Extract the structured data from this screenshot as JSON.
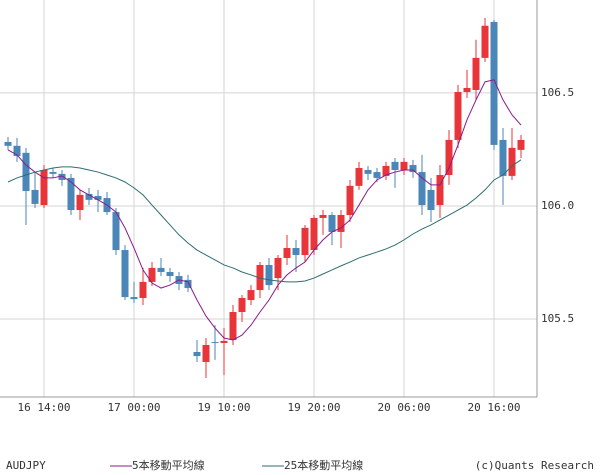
{
  "chart_data": {
    "type": "candlestick",
    "symbol": "AUDJPY",
    "credit": "(c)Quants Research",
    "up_color": "#e8353a",
    "down_color": "#4a86b8",
    "grid": true,
    "ylim": [
      105.155,
      106.911
    ],
    "yticks": [
      105.5,
      {
        "value": 106,
        "label": "106.0"
      },
      106.5
    ],
    "categories": [
      null,
      null,
      null,
      null,
      "16 14:00",
      null,
      null,
      null,
      null,
      null,
      null,
      null,
      null,
      null,
      "17 00:00",
      null,
      null,
      null,
      null,
      null,
      null,
      null,
      null,
      null,
      "19 10:00",
      null,
      null,
      null,
      null,
      null,
      null,
      null,
      null,
      null,
      "19 20:00",
      null,
      null,
      null,
      null,
      null,
      null,
      null,
      null,
      null,
      "20 06:00",
      null,
      null,
      null,
      null,
      null,
      null,
      null,
      null,
      null,
      "20 16:00",
      null,
      null,
      null
    ],
    "open": [
      106.283,
      106.266,
      106.235,
      106.071,
      106.004,
      106.15,
      106.142,
      106.124,
      105.982,
      106.053,
      106.044,
      106.035,
      105.973,
      105.805,
      105.597,
      105.593,
      105.664,
      105.726,
      105.708,
      105.69,
      105.673,
      105.354,
      105.31,
      105.398,
      105.394,
      105.407,
      105.531,
      105.584,
      105.628,
      105.739,
      105.681,
      105.77,
      105.814,
      105.783,
      105.805,
      105.947,
      105.96,
      105.885,
      105.96,
      106.089,
      106.159,
      106.15,
      106.133,
      106.195,
      106.159,
      106.181,
      106.15,
      106.071,
      106.004,
      106.137,
      106.292,
      106.504,
      106.513,
      106.655,
      106.814,
      106.292,
      106.133,
      106.248
    ],
    "high": [
      106.305,
      106.301,
      106.257,
      106.15,
      106.181,
      106.168,
      106.159,
      106.142,
      106.071,
      106.08,
      106.071,
      106.062,
      105.991,
      105.827,
      105.664,
      105.726,
      105.752,
      105.77,
      105.726,
      105.708,
      105.695,
      105.407,
      105.416,
      105.473,
      105.46,
      105.562,
      105.606,
      105.65,
      105.752,
      105.77,
      105.783,
      105.872,
      105.85,
      105.916,
      105.96,
      105.982,
      105.973,
      105.982,
      106.115,
      106.195,
      106.177,
      106.168,
      106.195,
      106.212,
      106.212,
      106.204,
      106.226,
      106.124,
      106.181,
      106.336,
      106.535,
      106.602,
      106.735,
      106.832,
      106.823,
      106.345,
      106.345,
      106.314
    ],
    "low": [
      106.248,
      106.195,
      105.916,
      105.991,
      105.991,
      106.124,
      106.089,
      105.96,
      105.938,
      106.004,
      105.973,
      105.96,
      105.783,
      105.584,
      105.571,
      105.562,
      105.646,
      105.69,
      105.664,
      105.628,
      105.619,
      105.31,
      105.239,
      105.319,
      105.252,
      105.385,
      105.487,
      105.562,
      105.593,
      105.628,
      105.628,
      105.739,
      105.708,
      105.752,
      105.783,
      105.872,
      105.827,
      105.814,
      105.929,
      106.071,
      106.115,
      106.106,
      106.115,
      106.08,
      106.137,
      106.124,
      105.96,
      105.929,
      105.947,
      106.093,
      106.257,
      106.478,
      106.469,
      106.637,
      106.248,
      106.004,
      106.115,
      106.212
    ],
    "close": [
      106.266,
      106.221,
      106.066,
      106.009,
      106.159,
      106.142,
      106.115,
      105.982,
      106.049,
      106.027,
      106.027,
      105.973,
      105.805,
      105.597,
      105.588,
      105.664,
      105.726,
      105.708,
      105.69,
      105.655,
      105.637,
      105.336,
      105.385,
      105.394,
      105.403,
      105.531,
      105.593,
      105.628,
      105.739,
      105.65,
      105.77,
      105.814,
      105.783,
      105.903,
      105.947,
      105.96,
      105.885,
      105.96,
      106.089,
      106.168,
      106.142,
      106.124,
      106.177,
      106.159,
      106.195,
      106.15,
      106.004,
      105.982,
      106.137,
      106.292,
      106.504,
      106.522,
      106.655,
      106.797,
      106.27,
      106.133,
      106.257,
      106.292
    ],
    "series": [
      {
        "name": "5本移動平均線",
        "color": "#8b1a8b",
        "values": [
          106.248,
          106.226,
          106.181,
          106.15,
          106.124,
          106.124,
          106.133,
          106.106,
          106.071,
          106.049,
          106.027,
          106.004,
          105.973,
          105.903,
          105.814,
          105.717,
          105.659,
          105.637,
          105.65,
          105.673,
          105.664,
          105.584,
          105.513,
          105.46,
          105.416,
          105.407,
          105.429,
          105.473,
          105.531,
          105.584,
          105.65,
          105.695,
          105.726,
          105.752,
          105.805,
          105.85,
          105.885,
          105.903,
          105.938,
          106.004,
          106.071,
          106.115,
          106.137,
          106.15,
          106.159,
          106.159,
          106.124,
          106.093,
          106.093,
          106.168,
          106.27,
          106.381,
          106.469,
          106.549,
          106.558,
          106.469,
          106.403,
          106.358
        ]
      },
      {
        "name": "25本移動平均線",
        "color": "#2e6e6e",
        "values": [
          106.106,
          106.124,
          106.137,
          106.15,
          106.159,
          106.168,
          106.173,
          106.173,
          106.168,
          106.159,
          106.15,
          106.137,
          106.124,
          106.106,
          106.08,
          106.049,
          106.004,
          105.96,
          105.916,
          105.872,
          105.836,
          105.805,
          105.783,
          105.761,
          105.739,
          105.726,
          105.708,
          105.695,
          105.681,
          105.673,
          105.668,
          105.664,
          105.664,
          105.668,
          105.681,
          105.699,
          105.717,
          105.735,
          105.752,
          105.77,
          105.783,
          105.796,
          105.81,
          105.827,
          105.85,
          105.876,
          105.898,
          105.916,
          105.938,
          105.96,
          105.982,
          106.004,
          106.035,
          106.071,
          106.115,
          106.137,
          106.177,
          106.204
        ]
      }
    ]
  }
}
